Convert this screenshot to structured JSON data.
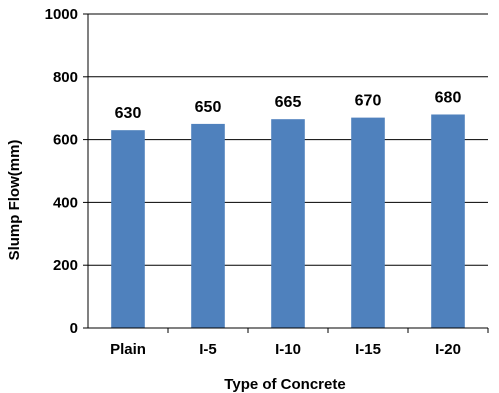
{
  "chart_data": {
    "type": "bar",
    "categories": [
      "Plain",
      "I-5",
      "I-10",
      "I-15",
      "I-20"
    ],
    "values": [
      630,
      650,
      665,
      670,
      680
    ],
    "data_labels": [
      "630",
      "650",
      "665",
      "670",
      "680"
    ],
    "title": "",
    "xlabel": "Type of Concrete",
    "ylabel": "Slump Flow(mm)",
    "ylim": [
      0,
      1000
    ],
    "yticks": [
      0,
      200,
      400,
      600,
      800,
      1000
    ],
    "grid": true,
    "legend": "none",
    "colors": {
      "bar": "#4f81bd",
      "gridline": "#000000",
      "axis": "#000000"
    }
  }
}
